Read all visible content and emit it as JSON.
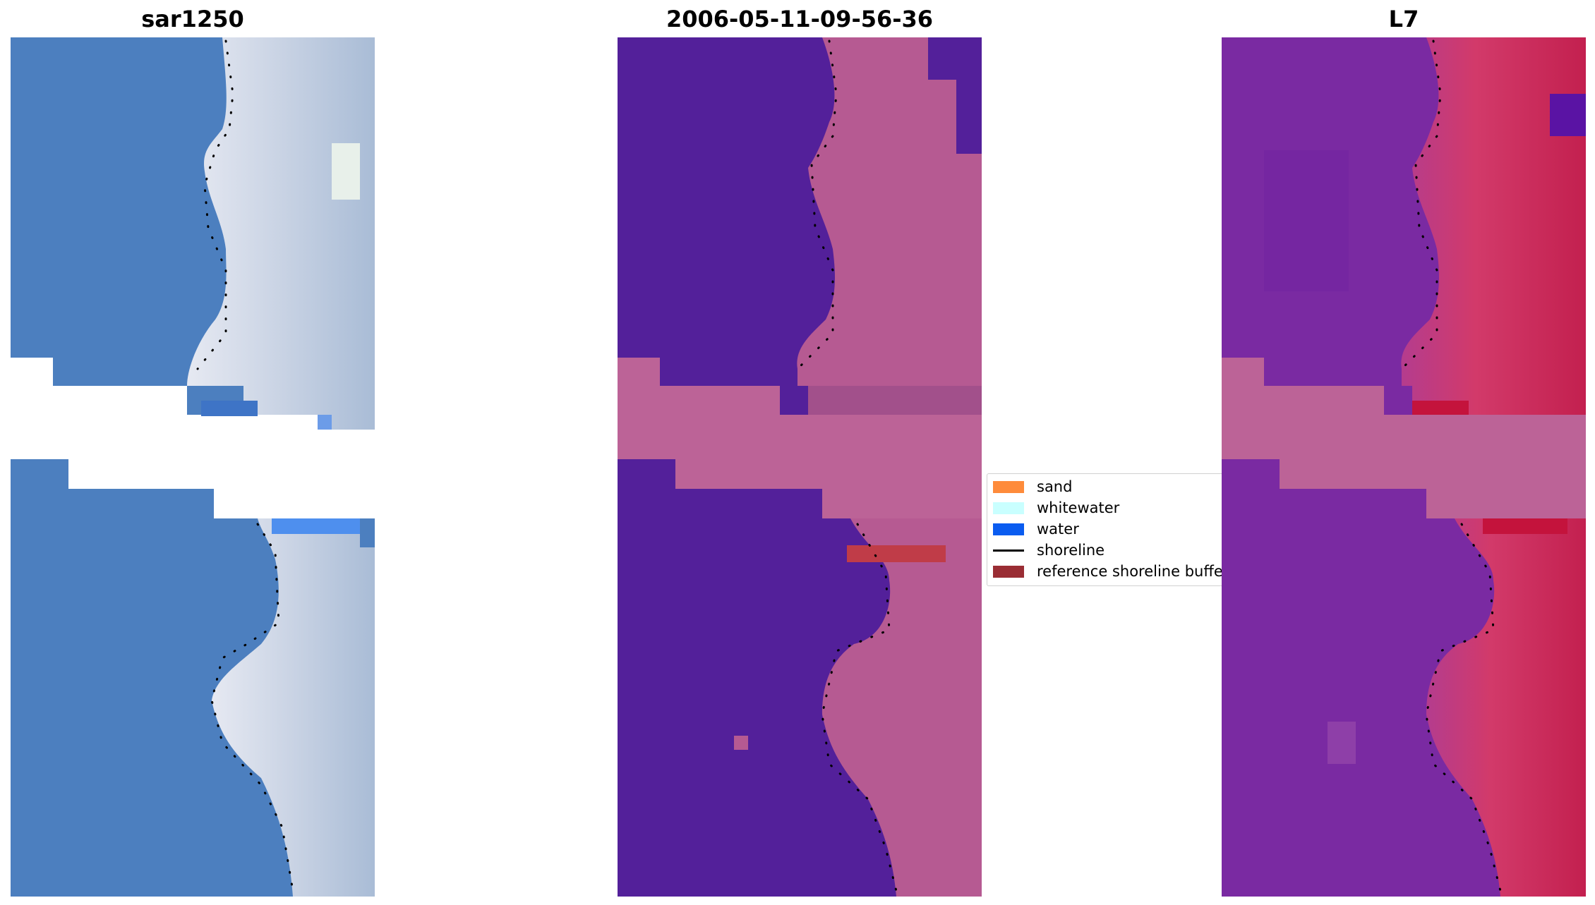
{
  "panels": [
    {
      "title": "sar1250"
    },
    {
      "title": "2006-05-11-09-56-36"
    },
    {
      "title": "L7"
    }
  ],
  "legend": {
    "items": [
      {
        "label": "sand",
        "color": "#fe8b3b",
        "kind": "patch"
      },
      {
        "label": "whitewater",
        "color": "#c9ffff",
        "kind": "patch"
      },
      {
        "label": "water",
        "color": "#0a5cf0",
        "kind": "patch"
      },
      {
        "label": "shoreline",
        "color": "#000000",
        "kind": "line"
      },
      {
        "label": "reference shoreline buffer",
        "color": "#9a2d34",
        "kind": "patch"
      }
    ]
  },
  "colors": {
    "rgb_water": "#4c7fbf",
    "rgb_land": "#c8d4e4",
    "class_background": "#53209a",
    "class_land": "#b65a92",
    "class_buffer_band": "#bc6397",
    "false_color_water": "#7a2aa2",
    "false_color_land": "#c8305c"
  }
}
